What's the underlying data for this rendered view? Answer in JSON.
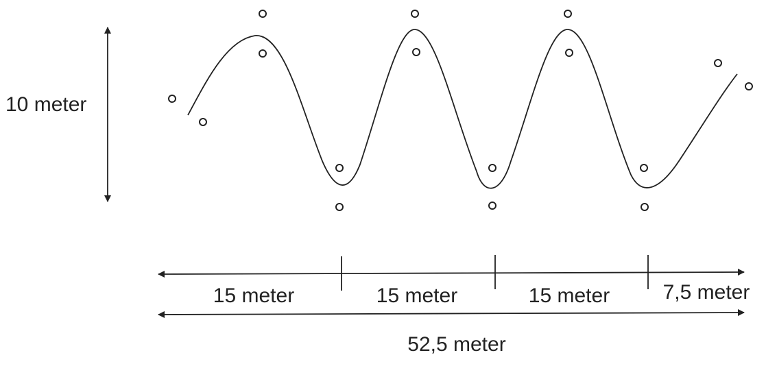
{
  "labels": {
    "height": "10 meter",
    "segment_1": "15 meter",
    "segment_2": "15 meter",
    "segment_3": "15 meter",
    "segment_4": "7,5 meter",
    "total": "52,5 meter"
  },
  "colors": {
    "ink": "#222222",
    "background": "#ffffff"
  }
}
